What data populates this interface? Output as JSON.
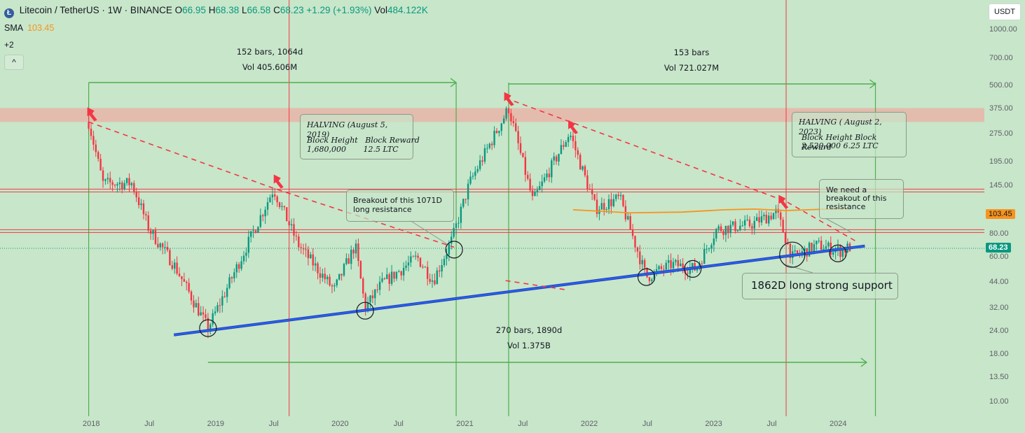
{
  "header": {
    "title": "Litecoin / TetherUS · 1W · BINANCE",
    "o_label": "O",
    "o": "66.95",
    "h_label": "H",
    "h": "68.38",
    "l_label": "L",
    "l": "66.58",
    "c_label": "C",
    "c": "68.23",
    "change": "+1.29 (+1.93%)",
    "vol_label": "Vol",
    "vol": "484.122K",
    "sma_label": "SMA",
    "sma_value": "103.45",
    "more": "+2",
    "collapse": "^"
  },
  "currency_button": "USDT",
  "chart_data": {
    "type": "candlestick",
    "scale": "log",
    "ylim": [
      8.5,
      1300
    ],
    "y_ticks": [
      "1000.00",
      "700.00",
      "500.00",
      "375.00",
      "275.00",
      "195.00",
      "145.00",
      "80.00",
      "60.00",
      "44.00",
      "32.00",
      "24.00",
      "18.00",
      "13.50",
      "10.00"
    ],
    "x_ticks": [
      "2018",
      "Jul",
      "2019",
      "Jul",
      "2020",
      "Jul",
      "2021",
      "Jul",
      "2022",
      "Jul",
      "2023",
      "Jul",
      "2024"
    ],
    "price_keys": [
      [
        "2017-12-25",
        320
      ],
      [
        "2018-02-05",
        150
      ],
      [
        "2018-05-01",
        150
      ],
      [
        "2018-06-20",
        85
      ],
      [
        "2018-09-01",
        55
      ],
      [
        "2018-12-10",
        25
      ],
      [
        "2019-02-01",
        40
      ],
      [
        "2019-06-20",
        140
      ],
      [
        "2019-09-01",
        70
      ],
      [
        "2019-12-15",
        40
      ],
      [
        "2020-02-15",
        70
      ],
      [
        "2020-03-15",
        32
      ],
      [
        "2020-05-01",
        43
      ],
      [
        "2020-08-15",
        60
      ],
      [
        "2020-10-01",
        45
      ],
      [
        "2020-11-25",
        75
      ],
      [
        "2021-01-15",
        150
      ],
      [
        "2021-05-10",
        380
      ],
      [
        "2021-07-20",
        120
      ],
      [
        "2021-11-05",
        280
      ],
      [
        "2022-01-20",
        110
      ],
      [
        "2022-04-01",
        125
      ],
      [
        "2022-06-18",
        47
      ],
      [
        "2022-09-01",
        55
      ],
      [
        "2022-11-10",
        52
      ],
      [
        "2023-01-10",
        85
      ],
      [
        "2023-04-20",
        90
      ],
      [
        "2023-07-05",
        105
      ],
      [
        "2023-08-20",
        60
      ],
      [
        "2023-11-01",
        70
      ],
      [
        "2024-01-08",
        65
      ],
      [
        "2024-02-05",
        68.23
      ]
    ],
    "last_price": "68.23",
    "sma_value": "103.45",
    "sma_path": [
      [
        "2021-11-15",
        108
      ],
      [
        "2022-05-01",
        104
      ],
      [
        "2022-10-01",
        105
      ],
      [
        "2023-02-01",
        108
      ],
      [
        "2023-05-01",
        109
      ],
      [
        "2023-08-01",
        107
      ],
      [
        "2024-02-01",
        110
      ]
    ],
    "resistance_zone": [
      320,
      380
    ],
    "horizontal_lines": [
      137,
      83
    ],
    "support_line": [
      [
        "2018-09-01",
        23
      ],
      [
        "2024-03-20",
        69
      ]
    ],
    "descending_lines": [
      [
        [
          "2017-12-25",
          320
        ],
        [
          "2019-06-25",
          140
        ],
        [
          "2020-12-01",
          68
        ]
      ],
      [
        [
          "2021-05-01",
          430
        ],
        [
          "2023-08-01",
          120
        ],
        [
          "2024-03-01",
          72
        ]
      ],
      [
        [
          "2021-05-01",
          45
        ],
        [
          "2021-11-01",
          40
        ]
      ]
    ],
    "vertical_lines": {
      "red": [
        "2019-08-05",
        "2023-08-02"
      ],
      "green": [
        "2017-12-25",
        "2020-12-07",
        "2021-05-10",
        "2024-04-20"
      ]
    },
    "circles": [
      [
        "2018-12-10",
        25
      ],
      [
        "2020-03-15",
        31
      ],
      [
        "2020-12-01",
        66
      ],
      [
        "2022-06-18",
        47
      ],
      [
        "2022-11-01",
        52
      ],
      [
        "2023-08-20",
        62
      ],
      [
        "2024-01-01",
        63
      ]
    ],
    "halving_arrows": [
      [
        "2017-12-25",
        340
      ],
      [
        "2019-06-25",
        148
      ],
      [
        "2021-05-01",
        410
      ],
      [
        "2021-11-05",
        290
      ],
      [
        "2023-07-15",
        115
      ]
    ],
    "measures": [
      {
        "label1": "152 bars, 1064d",
        "label2": "Vol 405.606M"
      },
      {
        "label1": "153 bars",
        "label2": "Vol 721.027M"
      },
      {
        "label1": "270 bars, 1890d",
        "label2": "Vol 1.375B"
      }
    ],
    "annotations": {
      "halving_2019": {
        "title": "HALVING (August 5, 2019)",
        "line1": "Block Height   Block Reward",
        "line2": "1,680,000       12.5 LTC"
      },
      "halving_2023": {
        "title": "HALVING ( August 2, 2023)",
        "line1": "Block Height Block Reward",
        "line2": "2,520,000 6.25 LTC"
      },
      "breakout_1071": {
        "line1": "Breakout of this 1071D",
        "line2": "long resistance"
      },
      "need_breakout": {
        "line1": "We need a",
        "line2": "breakout of this",
        "line3": "resistance"
      },
      "support_1862": "1862D long strong support"
    },
    "colors": {
      "background": "#c8e6c9",
      "up": "#089981",
      "down": "#f23645",
      "sma": "#f7941d",
      "support": "#2962ff",
      "measure": "#4caf50",
      "zone": "#e8b4a8",
      "resistance": "#f23645"
    }
  }
}
